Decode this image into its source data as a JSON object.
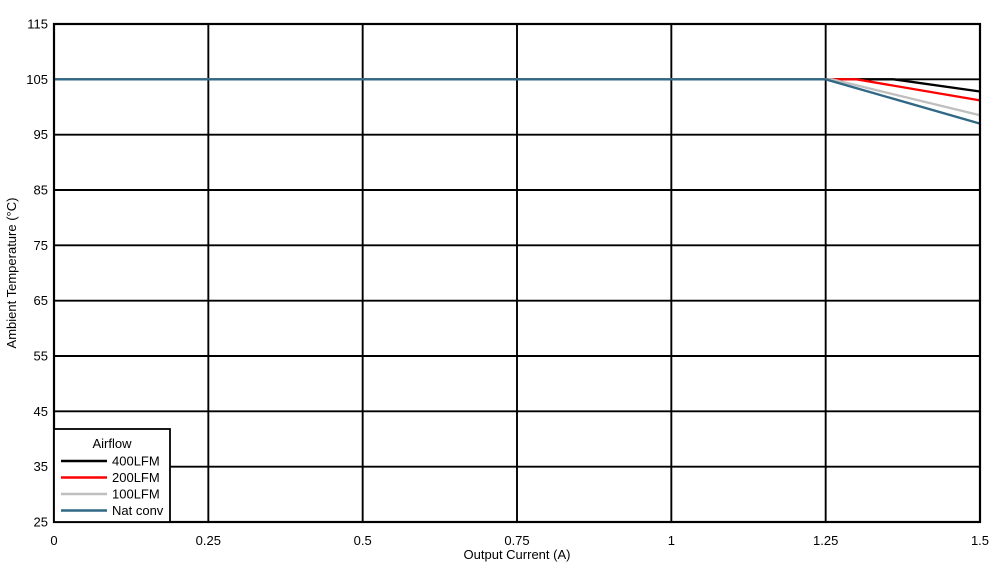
{
  "chart_data": {
    "type": "line",
    "title": "",
    "xlabel": "Output Current (A)",
    "ylabel": "Ambient Temperature (°C)",
    "xlim": [
      0,
      1.5
    ],
    "ylim": [
      25,
      115
    ],
    "x_ticks": [
      0,
      0.25,
      0.5,
      0.75,
      1,
      1.25,
      1.5
    ],
    "x_tick_labels": [
      "0",
      "0.25",
      "0.5",
      "0.75",
      "1",
      "1.25",
      "1.5"
    ],
    "y_ticks": [
      25,
      35,
      45,
      55,
      65,
      75,
      85,
      95,
      105,
      115
    ],
    "y_tick_labels": [
      "25",
      "35",
      "45",
      "55",
      "65",
      "75",
      "85",
      "95",
      "105",
      "115"
    ],
    "grid": true,
    "grid_color": "#000000",
    "background_color": "#ffffff",
    "legend": {
      "title": "Airflow",
      "position": "bottom-left"
    },
    "series": [
      {
        "name": "400LFM",
        "color": "#000000",
        "points": [
          [
            0,
            105
          ],
          [
            1.36,
            105
          ],
          [
            1.5,
            102.8
          ]
        ]
      },
      {
        "name": "200LFM",
        "color": "#ff0000",
        "points": [
          [
            0,
            105
          ],
          [
            1.3,
            105
          ],
          [
            1.5,
            101.2
          ]
        ]
      },
      {
        "name": "100LFM",
        "color": "#bfbfbf",
        "points": [
          [
            0,
            105
          ],
          [
            1.26,
            105
          ],
          [
            1.5,
            98.5
          ]
        ]
      },
      {
        "name": "Nat conv",
        "color": "#316885",
        "points": [
          [
            0,
            105
          ],
          [
            1.25,
            105
          ],
          [
            1.5,
            97.0
          ]
        ]
      }
    ]
  }
}
